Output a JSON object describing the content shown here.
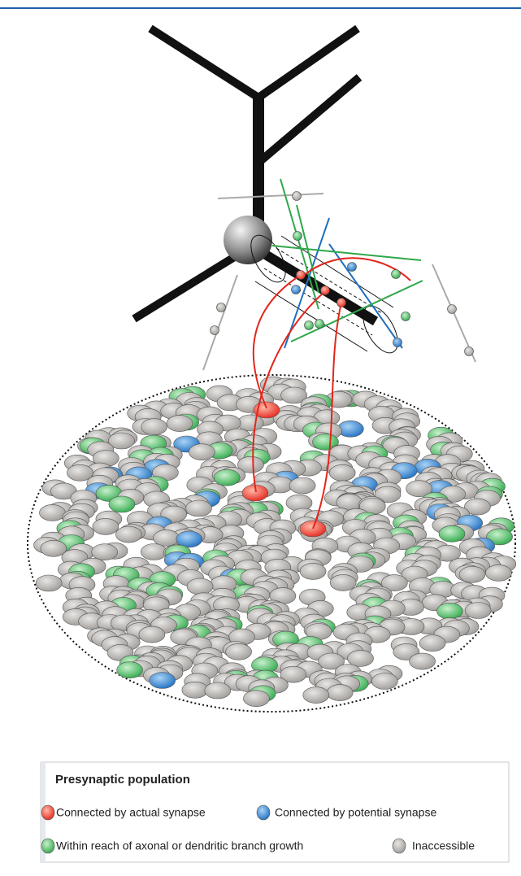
{
  "legend": {
    "title": "Presynaptic population",
    "items": [
      {
        "label": "Connected by actual synapse"
      },
      {
        "label": "Connected by potential synapse"
      },
      {
        "label": "Within reach of axonal or dendritic branch growth"
      },
      {
        "label": "Inaccessible"
      }
    ]
  }
}
